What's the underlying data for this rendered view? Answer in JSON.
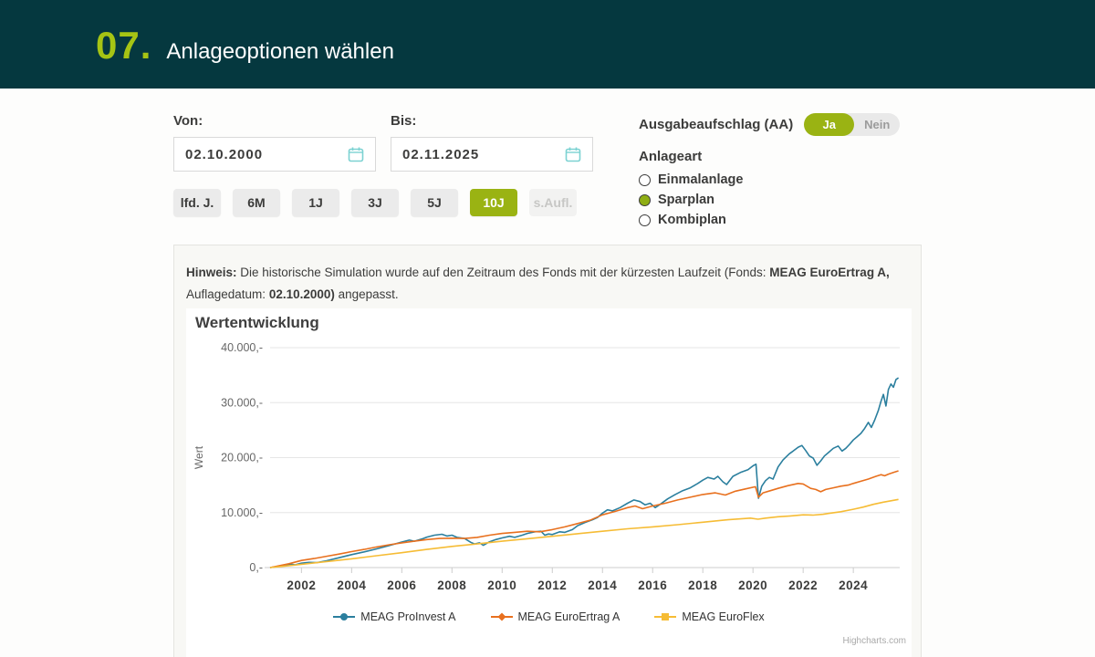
{
  "header": {
    "step_number": "07.",
    "title": "Anlageoptionen wählen"
  },
  "filters": {
    "von": {
      "label": "Von:",
      "value": "02.10.2000"
    },
    "bis": {
      "label": "Bis:",
      "value": "02.11.2025"
    },
    "ranges": [
      {
        "label": "lfd. J.",
        "state": "default"
      },
      {
        "label": "6M",
        "state": "default"
      },
      {
        "label": "1J",
        "state": "default"
      },
      {
        "label": "3J",
        "state": "default"
      },
      {
        "label": "5J",
        "state": "default"
      },
      {
        "label": "10J",
        "state": "selected"
      },
      {
        "label": "s.Aufl.",
        "state": "disabled"
      }
    ]
  },
  "options": {
    "aa": {
      "label": "Ausgabeaufschlag (AA)",
      "on_label": "Ja",
      "off_label": "Nein",
      "selected": "Ja"
    },
    "anlageart": {
      "label": "Anlageart",
      "choices": [
        {
          "label": "Einmalanlage",
          "selected": false
        },
        {
          "label": "Sparplan",
          "selected": true
        },
        {
          "label": "Kombiplan",
          "selected": false
        }
      ]
    }
  },
  "hinweis": {
    "bold_prefix": "Hinweis:",
    "text_1": " Die historische Simulation wurde auf den Zeitraum des Fonds mit der kürzesten Laufzeit (Fonds: ",
    "bold_1": "MEAG EuroErtrag A,",
    "text_2": " Auflagedatum: ",
    "bold_2": "02.10.2000)",
    "text_3": " angepasst."
  },
  "credit": "Highcharts.com",
  "colors": {
    "header_bg": "#05383f",
    "accent_green": "#9ab313",
    "calendar_icon": "#7cd2d2",
    "grid": "#e6e6e6",
    "axis": "#cccccc"
  },
  "chart_data": {
    "type": "line",
    "title": "Wertentwicklung",
    "ylabel": "Wert",
    "xlabel": "",
    "xlim": [
      2000.75,
      2025.85
    ],
    "ylim": [
      0,
      40000
    ],
    "grid": true,
    "legend_position": "bottom",
    "x_ticks": [
      2002,
      2004,
      2006,
      2008,
      2010,
      2012,
      2014,
      2016,
      2018,
      2020,
      2022,
      2024
    ],
    "y_ticks": [
      {
        "value": 0,
        "label": "0,-"
      },
      {
        "value": 10000,
        "label": "10.000,-"
      },
      {
        "value": 20000,
        "label": "20.000,-"
      },
      {
        "value": 30000,
        "label": "30.000,-"
      },
      {
        "value": 40000,
        "label": "40.000,-"
      }
    ],
    "series": [
      {
        "name": "MEAG ProInvest A",
        "color": "#2b7f9e",
        "marker": "circle",
        "points": [
          [
            2000.75,
            0
          ],
          [
            2001.0,
            150
          ],
          [
            2001.3,
            400
          ],
          [
            2001.6,
            600
          ],
          [
            2001.75,
            500
          ],
          [
            2002.0,
            800
          ],
          [
            2002.3,
            950
          ],
          [
            2002.6,
            900
          ],
          [
            2003.0,
            1250
          ],
          [
            2003.5,
            1800
          ],
          [
            2004.0,
            2350
          ],
          [
            2004.5,
            2850
          ],
          [
            2005.0,
            3400
          ],
          [
            2005.5,
            4000
          ],
          [
            2006.0,
            4650
          ],
          [
            2006.3,
            5000
          ],
          [
            2006.5,
            4800
          ],
          [
            2006.8,
            5200
          ],
          [
            2007.0,
            5550
          ],
          [
            2007.3,
            5900
          ],
          [
            2007.6,
            6050
          ],
          [
            2007.8,
            5750
          ],
          [
            2008.0,
            5900
          ],
          [
            2008.2,
            5500
          ],
          [
            2008.5,
            5300
          ],
          [
            2008.75,
            4600
          ],
          [
            2008.9,
            4300
          ],
          [
            2009.1,
            4500
          ],
          [
            2009.25,
            4050
          ],
          [
            2009.5,
            4700
          ],
          [
            2009.75,
            5100
          ],
          [
            2010.0,
            5400
          ],
          [
            2010.3,
            5700
          ],
          [
            2010.5,
            5500
          ],
          [
            2010.8,
            5900
          ],
          [
            2011.0,
            6200
          ],
          [
            2011.3,
            6500
          ],
          [
            2011.55,
            6600
          ],
          [
            2011.7,
            5900
          ],
          [
            2011.85,
            6100
          ],
          [
            2012.0,
            6000
          ],
          [
            2012.3,
            6500
          ],
          [
            2012.5,
            6400
          ],
          [
            2012.8,
            6900
          ],
          [
            2013.0,
            7600
          ],
          [
            2013.3,
            8200
          ],
          [
            2013.6,
            8700
          ],
          [
            2013.8,
            9100
          ],
          [
            2014.0,
            9900
          ],
          [
            2014.2,
            10500
          ],
          [
            2014.4,
            10300
          ],
          [
            2014.7,
            10900
          ],
          [
            2015.0,
            11700
          ],
          [
            2015.25,
            12300
          ],
          [
            2015.5,
            12000
          ],
          [
            2015.7,
            11400
          ],
          [
            2015.9,
            11700
          ],
          [
            2016.1,
            10900
          ],
          [
            2016.3,
            11500
          ],
          [
            2016.6,
            12500
          ],
          [
            2016.9,
            13300
          ],
          [
            2017.2,
            14000
          ],
          [
            2017.5,
            14500
          ],
          [
            2017.8,
            15300
          ],
          [
            2018.0,
            15900
          ],
          [
            2018.2,
            16400
          ],
          [
            2018.45,
            16100
          ],
          [
            2018.6,
            16600
          ],
          [
            2018.8,
            15600
          ],
          [
            2018.95,
            15100
          ],
          [
            2019.2,
            16600
          ],
          [
            2019.5,
            17300
          ],
          [
            2019.8,
            17800
          ],
          [
            2020.0,
            18500
          ],
          [
            2020.12,
            18800
          ],
          [
            2020.22,
            12600
          ],
          [
            2020.35,
            14800
          ],
          [
            2020.5,
            15800
          ],
          [
            2020.65,
            16400
          ],
          [
            2020.8,
            16100
          ],
          [
            2021.0,
            18300
          ],
          [
            2021.2,
            19600
          ],
          [
            2021.45,
            20700
          ],
          [
            2021.6,
            21200
          ],
          [
            2021.8,
            21900
          ],
          [
            2021.95,
            22200
          ],
          [
            2022.1,
            21300
          ],
          [
            2022.25,
            20300
          ],
          [
            2022.4,
            19900
          ],
          [
            2022.55,
            18600
          ],
          [
            2022.7,
            19400
          ],
          [
            2022.85,
            20300
          ],
          [
            2023.0,
            20900
          ],
          [
            2023.2,
            21700
          ],
          [
            2023.4,
            22100
          ],
          [
            2023.55,
            21200
          ],
          [
            2023.7,
            21700
          ],
          [
            2023.85,
            22400
          ],
          [
            2024.0,
            23200
          ],
          [
            2024.15,
            23800
          ],
          [
            2024.3,
            24400
          ],
          [
            2024.45,
            25300
          ],
          [
            2024.6,
            26400
          ],
          [
            2024.72,
            25500
          ],
          [
            2024.85,
            26800
          ],
          [
            2025.0,
            28600
          ],
          [
            2025.1,
            30200
          ],
          [
            2025.2,
            31500
          ],
          [
            2025.3,
            29400
          ],
          [
            2025.4,
            32400
          ],
          [
            2025.5,
            33400
          ],
          [
            2025.6,
            32800
          ],
          [
            2025.7,
            34200
          ],
          [
            2025.8,
            34500
          ]
        ]
      },
      {
        "name": "MEAG EuroErtrag A",
        "color": "#e8701e",
        "marker": "diamond",
        "points": [
          [
            2000.75,
            0
          ],
          [
            2001.5,
            700
          ],
          [
            2002,
            1300
          ],
          [
            2002.5,
            1650
          ],
          [
            2003,
            2050
          ],
          [
            2003.5,
            2450
          ],
          [
            2004,
            2900
          ],
          [
            2004.5,
            3300
          ],
          [
            2005,
            3750
          ],
          [
            2005.5,
            4150
          ],
          [
            2006,
            4500
          ],
          [
            2006.5,
            4800
          ],
          [
            2007,
            5100
          ],
          [
            2007.5,
            5300
          ],
          [
            2008,
            5350
          ],
          [
            2008.5,
            5300
          ],
          [
            2009,
            5500
          ],
          [
            2009.5,
            5900
          ],
          [
            2010,
            6200
          ],
          [
            2010.5,
            6400
          ],
          [
            2011,
            6600
          ],
          [
            2011.5,
            6500
          ],
          [
            2012,
            6900
          ],
          [
            2012.5,
            7400
          ],
          [
            2013,
            8000
          ],
          [
            2013.5,
            8600
          ],
          [
            2014,
            9600
          ],
          [
            2014.5,
            10200
          ],
          [
            2015,
            10900
          ],
          [
            2015.3,
            11200
          ],
          [
            2015.6,
            10700
          ],
          [
            2016,
            11200
          ],
          [
            2016.5,
            11700
          ],
          [
            2017,
            12300
          ],
          [
            2017.5,
            12800
          ],
          [
            2018,
            13300
          ],
          [
            2018.5,
            13600
          ],
          [
            2018.9,
            13200
          ],
          [
            2019.3,
            13900
          ],
          [
            2019.7,
            14300
          ],
          [
            2020.1,
            14700
          ],
          [
            2020.22,
            12800
          ],
          [
            2020.4,
            13600
          ],
          [
            2020.7,
            14000
          ],
          [
            2021,
            14400
          ],
          [
            2021.4,
            14900
          ],
          [
            2021.8,
            15300
          ],
          [
            2022,
            15200
          ],
          [
            2022.3,
            14400
          ],
          [
            2022.5,
            14200
          ],
          [
            2022.7,
            13800
          ],
          [
            2022.9,
            14200
          ],
          [
            2023.2,
            14500
          ],
          [
            2023.5,
            14800
          ],
          [
            2023.8,
            15000
          ],
          [
            2024,
            15300
          ],
          [
            2024.3,
            15700
          ],
          [
            2024.6,
            16100
          ],
          [
            2024.9,
            16600
          ],
          [
            2025.1,
            16900
          ],
          [
            2025.25,
            16700
          ],
          [
            2025.4,
            17000
          ],
          [
            2025.6,
            17300
          ],
          [
            2025.8,
            17600
          ]
        ]
      },
      {
        "name": "MEAG EuroFlex",
        "color": "#f6bc35",
        "marker": "square",
        "points": [
          [
            2000.75,
            0
          ],
          [
            2001.5,
            350
          ],
          [
            2002,
            600
          ],
          [
            2003,
            1100
          ],
          [
            2004,
            1600
          ],
          [
            2005,
            2150
          ],
          [
            2006,
            2700
          ],
          [
            2007,
            3300
          ],
          [
            2008,
            3850
          ],
          [
            2009,
            4300
          ],
          [
            2010,
            4800
          ],
          [
            2011,
            5250
          ],
          [
            2012,
            5700
          ],
          [
            2013,
            6150
          ],
          [
            2014,
            6600
          ],
          [
            2015,
            7050
          ],
          [
            2016,
            7400
          ],
          [
            2017,
            7800
          ],
          [
            2018,
            8250
          ],
          [
            2019,
            8700
          ],
          [
            2019.9,
            9000
          ],
          [
            2020.2,
            8800
          ],
          [
            2020.5,
            9000
          ],
          [
            2021,
            9250
          ],
          [
            2021.5,
            9400
          ],
          [
            2022,
            9600
          ],
          [
            2022.4,
            9550
          ],
          [
            2022.8,
            9700
          ],
          [
            2023,
            9850
          ],
          [
            2023.5,
            10150
          ],
          [
            2024,
            10600
          ],
          [
            2024.4,
            11000
          ],
          [
            2024.8,
            11500
          ],
          [
            2025.2,
            11900
          ],
          [
            2025.5,
            12150
          ],
          [
            2025.8,
            12400
          ]
        ]
      }
    ]
  }
}
